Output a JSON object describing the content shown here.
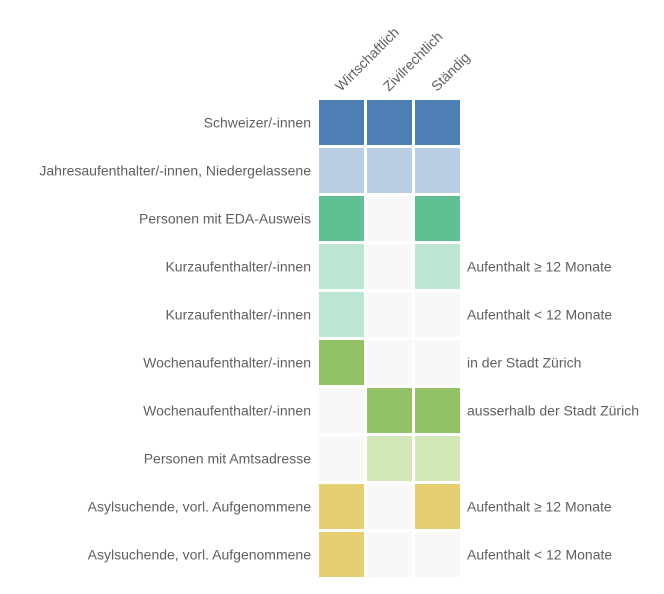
{
  "chart_data": {
    "type": "heatmap",
    "columns": [
      "Wirtschaftlich",
      "Zivilrechtlich",
      "Ständig"
    ],
    "rows": [
      {
        "label": "Schweizer/-innen",
        "cells": [
          "dark-blue",
          "dark-blue",
          "dark-blue"
        ],
        "note": ""
      },
      {
        "label": "Jahresaufenthalter/-innen, Niedergelassene",
        "cells": [
          "light-blue",
          "light-blue",
          "light-blue"
        ],
        "note": ""
      },
      {
        "label": "Personen mit EDA-Ausweis",
        "cells": [
          "teal",
          "empty",
          "teal"
        ],
        "note": ""
      },
      {
        "label": "Kurzaufenthalter/-innen",
        "cells": [
          "mint",
          "empty",
          "mint"
        ],
        "note": "Aufenthalt ≥ 12 Monate"
      },
      {
        "label": "Kurzaufenthalter/-innen",
        "cells": [
          "mint",
          "empty",
          "empty"
        ],
        "note": "Aufenthalt < 12 Monate"
      },
      {
        "label": "Wochenaufenthalter/-innen",
        "cells": [
          "green",
          "empty",
          "empty"
        ],
        "note": "in der Stadt Zürich"
      },
      {
        "label": "Wochenaufenthalter/-innen",
        "cells": [
          "empty",
          "green",
          "green"
        ],
        "note": "ausserhalb der Stadt Zürich"
      },
      {
        "label": "Personen mit Amtsadresse",
        "cells": [
          "empty",
          "light-green",
          "light-green"
        ],
        "note": ""
      },
      {
        "label": "Asylsuchende, vorl. Aufgenommene",
        "cells": [
          "yellow",
          "empty",
          "yellow"
        ],
        "note": "Aufenthalt ≥ 12 Monate"
      },
      {
        "label": "Asylsuchende, vorl. Aufgenommene",
        "cells": [
          "yellow",
          "empty",
          "empty"
        ],
        "note": "Aufenthalt < 12 Monate"
      }
    ],
    "colors": {
      "dark-blue": "#4e7fb4",
      "light-blue": "#bacfe6",
      "teal": "#60c093",
      "mint": "#bce6d3",
      "green": "#92c168",
      "light-green": "#d2e6b6",
      "yellow": "#e6cf73",
      "empty": "#f8f8f8"
    },
    "text_color": "#5f5f5f"
  }
}
